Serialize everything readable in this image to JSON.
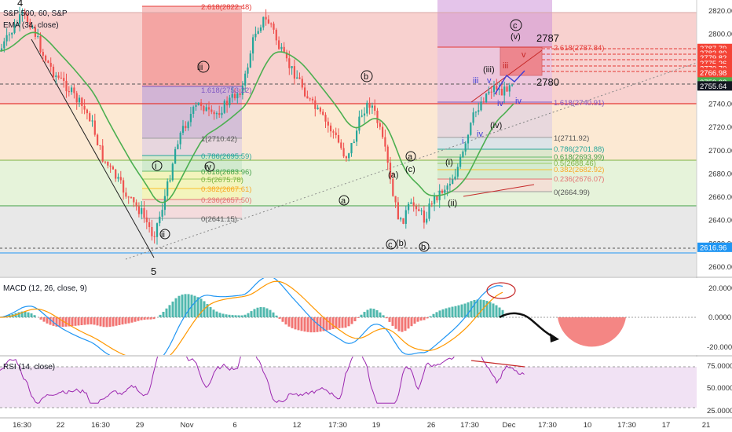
{
  "header": {
    "symbol": "S&P 500, 60, S&P",
    "ema_label": "EMA (34, close)",
    "macd_label": "MACD (12, 26, close, 9)",
    "rsi_label": "RSI (14, close)"
  },
  "colors": {
    "candle_up": "#26a69a",
    "candle_down": "#ef5350",
    "ema": "#4caf50",
    "macd_line": "#2196f3",
    "signal_line": "#ff9800",
    "rsi_line": "#9c27b0",
    "fib_red": "#f44336",
    "fib_green": "#4caf50",
    "fib_blue": "#2196f3",
    "sub_wave": "#3f3fd6"
  },
  "price_axis": {
    "ticks": [
      "2820.00",
      "2800.00",
      "2780.00",
      "2760.00",
      "2740.00",
      "2720.00",
      "2700.00",
      "2680.00",
      "2660.00",
      "2640.00",
      "2620.00",
      "2600.00"
    ],
    "highlights": [
      {
        "label": "2787.79",
        "color": "#f44336"
      },
      {
        "label": "2783.80",
        "color": "#f44336"
      },
      {
        "label": "2779.82",
        "color": "#f44336"
      },
      {
        "label": "2775.26",
        "color": "#f44336"
      },
      {
        "label": "2770.70",
        "color": "#f44336"
      },
      {
        "label": "2766.98",
        "color": "#f44336"
      },
      {
        "label": "2759.02",
        "color": "#4caf50"
      },
      {
        "label": "2755.64",
        "color": "#131722"
      },
      {
        "label": "2616.96",
        "color": "#2196f3"
      }
    ]
  },
  "macd_axis": {
    "ticks": [
      "20.0000",
      "0.0000",
      "-20.0000"
    ]
  },
  "rsi_axis": {
    "ticks": [
      "75.0000",
      "50.0000",
      "25.0000"
    ]
  },
  "time_axis": {
    "ticks": [
      "16:30",
      "22",
      "16:30",
      "29",
      "Nov",
      "6",
      "12",
      "17:30",
      "19",
      "26",
      "17:30",
      "Dec",
      "17:30",
      "10",
      "17:30",
      "17",
      "21"
    ]
  },
  "fib_left": [
    {
      "label": "2.618(2822.48)"
    },
    {
      "label": "1.618(2753.22)"
    },
    {
      "label": "1(2710.42)"
    },
    {
      "label": "0.786(2695.59)"
    },
    {
      "label": "0.618(2683.96)"
    },
    {
      "label": "0.5(2675.78)"
    },
    {
      "label": "0.382(2667.61)"
    },
    {
      "label": "0.236(2657.50)"
    },
    {
      "label": "0(2641.15)"
    }
  ],
  "fib_right": [
    {
      "label": "2.618(2787.84)"
    },
    {
      "label": "1.618(2740.91)"
    },
    {
      "label": "1(2711.92)"
    },
    {
      "label": "0.786(2701.88)"
    },
    {
      "label": "0.618(2693.99)"
    },
    {
      "label": "0.5(2688.46)"
    },
    {
      "label": "0.382(2682.92)"
    },
    {
      "label": "0.236(2676.07)"
    },
    {
      "label": "0(2664.99)"
    }
  ],
  "wave_labels": {
    "w4": "4",
    "w5": "5",
    "i": "i",
    "ii": "ii",
    "iii": "iii",
    "iv": "iv",
    "a": "a",
    "b": "b",
    "c": "c",
    "pa": "(a)",
    "pb": "(b)",
    "pc": "(c)",
    "pi": "(i)",
    "pii": "(ii)",
    "piii": "(iii)",
    "piv": "(iv)",
    "pv": "(v)",
    "sub_i": "i",
    "sub_iii": "iii",
    "sub_iv": "iv",
    "sub_v": "v",
    "target_high": "2787",
    "target_low": "2780"
  },
  "chart_data": {
    "type": "candlestick",
    "title": "S&P 500, 60, S&P",
    "ylim": [
      2595,
      2830
    ],
    "x": [
      "16:30",
      "22",
      "16:30",
      "29",
      "Nov",
      "6",
      "12",
      "17:30",
      "19",
      "26",
      "17:30",
      "Dec"
    ],
    "close_approx": [
      2800,
      2760,
      2700,
      2640,
      2690,
      2740,
      2810,
      2700,
      2650,
      2660,
      2740,
      2756
    ],
    "series": [
      {
        "name": "EMA (34, close)",
        "values": [
          2805,
          2780,
          2735,
          2690,
          2700,
          2730,
          2785,
          2735,
          2680,
          2665,
          2720,
          2759
        ]
      }
    ],
    "fib_left": [
      2822.48,
      2753.22,
      2710.42,
      2695.59,
      2683.96,
      2675.78,
      2667.61,
      2657.5,
      2641.15
    ],
    "fib_right": [
      2787.84,
      2740.91,
      2711.92,
      2701.88,
      2693.99,
      2688.46,
      2682.92,
      2676.07,
      2664.99
    ],
    "last_price": 2755.64
  }
}
